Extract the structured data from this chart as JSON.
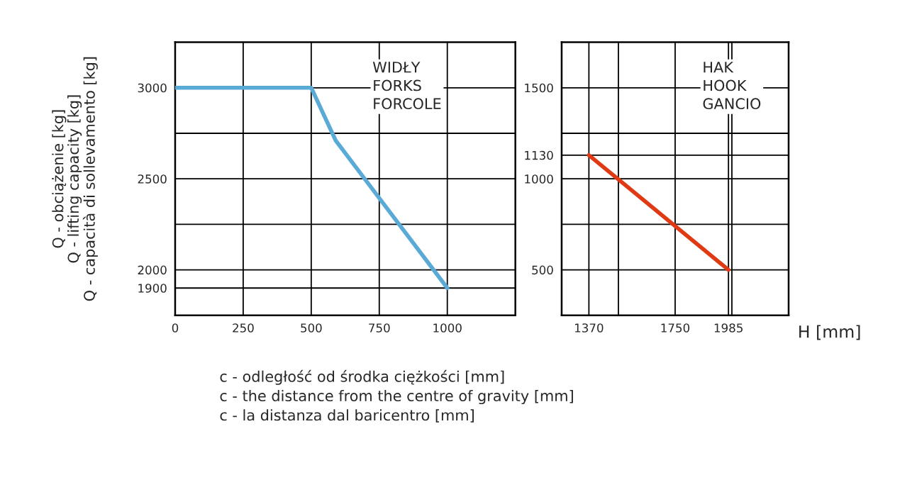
{
  "chart_data": [
    {
      "type": "line",
      "x": [
        0,
        500,
        590,
        1000
      ],
      "values": [
        3000,
        3000,
        2710,
        1900
      ],
      "color": "#5aaad8",
      "xlim": [
        0,
        1250
      ],
      "xticks": [
        0,
        250,
        500,
        750,
        1000
      ],
      "ylim": [
        1750,
        3250
      ],
      "yticks": [
        1900,
        2000,
        {
          "value": 2250,
          "label": null
        },
        2500,
        {
          "value": 2750,
          "label": null
        },
        3000
      ],
      "grid": true,
      "marker": "none",
      "line_style": "solid",
      "xlabel": "c - odległość od środka ciężkości [mm]\nc - the distance from the centre of gravity [mm]\nc - la distanza dal baricentro [mm]",
      "ylabel": "Q - obciążenie [kg]\nQ - lifting capacity [kg]\nQ - capacità di sollevamento [kg]",
      "annotations": [
        "WIDŁY\nFORKS\nFORCOLE"
      ]
    },
    {
      "type": "line",
      "x": [
        1370,
        1985
      ],
      "values": [
        1130,
        500
      ],
      "color": "#e03a14",
      "xlim": [
        1250,
        2250
      ],
      "xticks": [
        1370,
        {
          "value": 1500,
          "label": null
        },
        1750,
        1985,
        {
          "value": 2000,
          "label": null
        }
      ],
      "ylim": [
        250,
        1750
      ],
      "yticks": [
        500,
        {
          "value": 750,
          "label": null
        },
        1000,
        1130,
        {
          "value": 1250,
          "label": null
        },
        1500
      ],
      "grid": true,
      "marker": "none",
      "line_style": "solid",
      "xlabel": "H [mm]",
      "annotations": [
        "HAK\nHOOK\nGANCIO"
      ]
    }
  ]
}
